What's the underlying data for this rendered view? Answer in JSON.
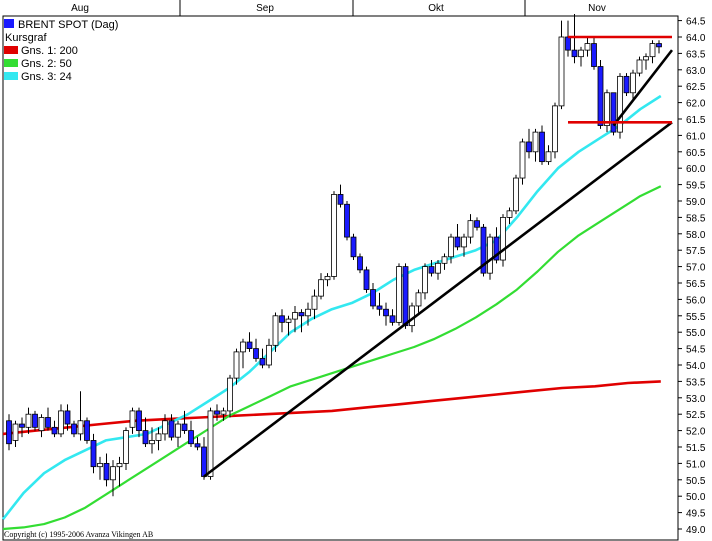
{
  "chart_data": {
    "type": "candlestick",
    "title": "BRENT SPOT (Dag)",
    "subtitle": "Kursgraf",
    "copyright": "Copyright (c) 1995-2006 Avanza Vikingen AB",
    "x_labels": [
      "Aug",
      "Sep",
      "Okt",
      "Nov"
    ],
    "ylim": [
      48.8,
      64.8
    ],
    "y_ticks": [
      "49.0",
      "49.5",
      "50.0",
      "50.5",
      "51.0",
      "51.5",
      "52.0",
      "52.5",
      "53.0",
      "53.5",
      "54.0",
      "54.5",
      "55.0",
      "55.5",
      "56.0",
      "56.5",
      "57.0",
      "57.5",
      "58.0",
      "58.5",
      "59.0",
      "59.5",
      "60.0",
      "60.5",
      "61.0",
      "61.5",
      "62.0",
      "62.5",
      "63.0",
      "63.5",
      "64.0",
      "64.5"
    ],
    "legend": [
      {
        "label": "BRENT SPOT (Dag)",
        "color": "#1a1aff"
      },
      {
        "label": "Kursgraf",
        "color": ""
      },
      {
        "label": "Gns. 1: 200",
        "color": "#e00000"
      },
      {
        "label": "Gns. 2: 50",
        "color": "#33dd33"
      },
      {
        "label": "Gns. 3: 24",
        "color": "#33e8f0"
      }
    ],
    "colors": {
      "down": "#1a1aff",
      "up": "#ffffff",
      "ma200": "#e00000",
      "ma50": "#33dd33",
      "ma24": "#33e8f0",
      "trend": "#000000"
    },
    "candles_ohlc": [
      [
        52.3,
        52.5,
        51.4,
        51.6
      ],
      [
        51.7,
        52.3,
        51.5,
        52.2
      ],
      [
        52.2,
        52.4,
        51.8,
        52.1
      ],
      [
        52.1,
        52.7,
        51.9,
        52.5
      ],
      [
        52.5,
        52.6,
        52.0,
        52.1
      ],
      [
        52.0,
        52.5,
        51.8,
        52.4
      ],
      [
        52.4,
        52.7,
        52.0,
        52.1
      ],
      [
        52.1,
        52.3,
        51.8,
        51.9
      ],
      [
        51.9,
        52.8,
        51.8,
        52.6
      ],
      [
        52.6,
        52.8,
        52.0,
        52.2
      ],
      [
        52.2,
        52.3,
        51.8,
        51.9
      ],
      [
        51.9,
        53.2,
        51.7,
        52.3
      ],
      [
        52.3,
        52.4,
        51.6,
        51.7
      ],
      [
        51.7,
        51.9,
        50.7,
        50.9
      ],
      [
        50.9,
        51.2,
        50.5,
        51.0
      ],
      [
        51.0,
        51.3,
        50.3,
        50.5
      ],
      [
        50.5,
        51.1,
        50.0,
        50.9
      ],
      [
        50.9,
        51.2,
        50.3,
        51.0
      ],
      [
        51.0,
        52.1,
        50.8,
        52.0
      ],
      [
        52.1,
        52.7,
        51.9,
        52.6
      ],
      [
        52.6,
        52.7,
        51.8,
        52.0
      ],
      [
        52.0,
        52.4,
        51.5,
        51.6
      ],
      [
        51.6,
        52.1,
        51.3,
        51.7
      ],
      [
        51.7,
        52.1,
        51.4,
        51.9
      ],
      [
        51.9,
        52.5,
        51.7,
        52.3
      ],
      [
        52.3,
        52.5,
        51.7,
        51.8
      ],
      [
        51.8,
        52.3,
        51.5,
        52.2
      ],
      [
        52.2,
        52.6,
        51.9,
        52.0
      ],
      [
        52.0,
        52.3,
        51.5,
        51.6
      ],
      [
        51.6,
        51.8,
        51.4,
        51.5
      ],
      [
        51.5,
        51.8,
        50.5,
        50.6
      ],
      [
        50.6,
        52.7,
        50.5,
        52.6
      ],
      [
        52.6,
        52.8,
        52.3,
        52.5
      ],
      [
        52.5,
        52.7,
        52.3,
        52.6
      ],
      [
        52.6,
        53.7,
        52.4,
        53.6
      ],
      [
        53.6,
        54.5,
        53.4,
        54.4
      ],
      [
        54.4,
        54.8,
        53.9,
        54.7
      ],
      [
        54.7,
        55.0,
        54.4,
        54.5
      ],
      [
        54.5,
        54.8,
        54.1,
        54.2
      ],
      [
        54.2,
        54.5,
        53.9,
        54.0
      ],
      [
        54.0,
        54.8,
        53.9,
        54.6
      ],
      [
        54.6,
        55.6,
        54.4,
        55.5
      ],
      [
        55.5,
        55.7,
        55.0,
        55.3
      ],
      [
        55.3,
        55.5,
        54.9,
        55.4
      ],
      [
        55.4,
        55.8,
        55.0,
        55.6
      ],
      [
        55.6,
        55.7,
        55.0,
        55.5
      ],
      [
        55.5,
        55.9,
        55.2,
        55.7
      ],
      [
        55.7,
        56.3,
        55.4,
        56.1
      ],
      [
        56.1,
        56.8,
        56.0,
        56.6
      ],
      [
        56.6,
        56.8,
        56.4,
        56.7
      ],
      [
        56.7,
        59.3,
        56.6,
        59.2
      ],
      [
        59.2,
        59.5,
        58.8,
        58.9
      ],
      [
        58.9,
        59.0,
        57.8,
        57.9
      ],
      [
        57.9,
        58.0,
        57.2,
        57.3
      ],
      [
        57.3,
        57.4,
        56.8,
        56.9
      ],
      [
        56.9,
        57.0,
        56.2,
        56.3
      ],
      [
        56.3,
        56.5,
        55.7,
        55.8
      ],
      [
        55.8,
        56.2,
        55.5,
        55.7
      ],
      [
        55.7,
        55.9,
        55.2,
        55.5
      ],
      [
        55.5,
        55.7,
        55.2,
        55.3
      ],
      [
        55.3,
        57.1,
        55.2,
        57.0
      ],
      [
        57.0,
        57.1,
        55.1,
        55.2
      ],
      [
        55.2,
        55.9,
        55.0,
        55.8
      ],
      [
        55.8,
        56.3,
        55.6,
        56.2
      ],
      [
        56.2,
        57.1,
        56.0,
        57.0
      ],
      [
        57.0,
        57.2,
        56.7,
        56.8
      ],
      [
        56.8,
        57.2,
        56.6,
        57.1
      ],
      [
        57.1,
        57.4,
        56.9,
        57.3
      ],
      [
        57.3,
        58.0,
        57.1,
        57.9
      ],
      [
        57.9,
        58.3,
        57.5,
        57.6
      ],
      [
        57.6,
        58.0,
        57.3,
        57.9
      ],
      [
        57.9,
        58.6,
        57.7,
        58.4
      ],
      [
        58.4,
        58.5,
        58.1,
        58.2
      ],
      [
        58.2,
        58.3,
        56.7,
        56.8
      ],
      [
        56.8,
        58.0,
        56.6,
        57.9
      ],
      [
        57.9,
        58.2,
        57.1,
        57.2
      ],
      [
        57.2,
        58.6,
        57.0,
        58.5
      ],
      [
        58.5,
        58.8,
        58.3,
        58.7
      ],
      [
        58.7,
        59.8,
        58.6,
        59.7
      ],
      [
        59.7,
        60.9,
        59.5,
        60.8
      ],
      [
        60.8,
        61.2,
        60.3,
        60.5
      ],
      [
        60.5,
        61.2,
        60.2,
        61.1
      ],
      [
        61.1,
        61.3,
        60.1,
        60.2
      ],
      [
        60.2,
        60.7,
        60.1,
        60.5
      ],
      [
        60.5,
        62.0,
        60.3,
        61.9
      ],
      [
        61.9,
        64.5,
        61.8,
        64.0
      ],
      [
        64.0,
        64.5,
        63.4,
        63.6
      ],
      [
        63.6,
        64.7,
        63.2,
        63.4
      ],
      [
        63.4,
        63.7,
        63.1,
        63.6
      ],
      [
        63.6,
        64.0,
        63.4,
        63.8
      ],
      [
        63.8,
        64.0,
        63.0,
        63.1
      ],
      [
        63.1,
        63.3,
        61.2,
        61.3
      ],
      [
        61.3,
        62.4,
        61.1,
        62.3
      ],
      [
        62.3,
        62.3,
        61.0,
        61.1
      ],
      [
        61.1,
        62.9,
        60.9,
        62.8
      ],
      [
        62.8,
        62.9,
        62.2,
        62.3
      ],
      [
        62.3,
        63.0,
        62.1,
        62.9
      ],
      [
        62.9,
        63.4,
        62.8,
        63.3
      ],
      [
        63.3,
        63.5,
        63.0,
        63.4
      ],
      [
        63.4,
        63.9,
        63.2,
        63.8
      ],
      [
        63.8,
        63.9,
        63.5,
        63.7
      ]
    ],
    "ma200": [
      51.9,
      52.0,
      52.1,
      52.2,
      52.3,
      52.35,
      52.4,
      52.45,
      52.5,
      52.55,
      52.6,
      52.7,
      52.8,
      52.9,
      53.0,
      53.1,
      53.2,
      53.3,
      53.35,
      53.45,
      53.5
    ],
    "ma50": [
      49.0,
      49.05,
      49.15,
      49.35,
      49.65,
      50.05,
      50.45,
      50.85,
      51.25,
      51.65,
      52.05,
      52.45,
      52.75,
      53.05,
      53.35,
      53.55,
      53.75,
      53.95,
      54.15,
      54.35,
      54.55,
      54.8,
      55.1,
      55.45,
      55.85,
      56.3,
      56.85,
      57.45,
      57.95,
      58.35,
      58.75,
      59.15,
      59.45
    ],
    "ma24": [
      49.3,
      50.1,
      50.7,
      51.1,
      51.4,
      51.7,
      51.8,
      51.9,
      52.2,
      52.5,
      52.9,
      53.3,
      53.8,
      54.4,
      55.0,
      55.4,
      55.7,
      55.9,
      56.2,
      56.6,
      56.9,
      57.1,
      57.3,
      57.5,
      57.8,
      58.5,
      59.3,
      60.0,
      60.5,
      60.9,
      61.3,
      61.8,
      62.2
    ],
    "trendlines": [
      {
        "from": [
          30,
          50.6
        ],
        "to": [
          102,
          61.4
        ],
        "color": "#000000"
      },
      {
        "from": [
          93,
          61.3
        ],
        "to": [
          102,
          63.6
        ],
        "color": "#000000"
      },
      {
        "from": [
          86,
          64.0
        ],
        "to": [
          102,
          64.0
        ],
        "color": "#e00000"
      },
      {
        "from": [
          86,
          61.4
        ],
        "to": [
          102,
          61.4
        ],
        "color": "#e00000"
      }
    ]
  }
}
